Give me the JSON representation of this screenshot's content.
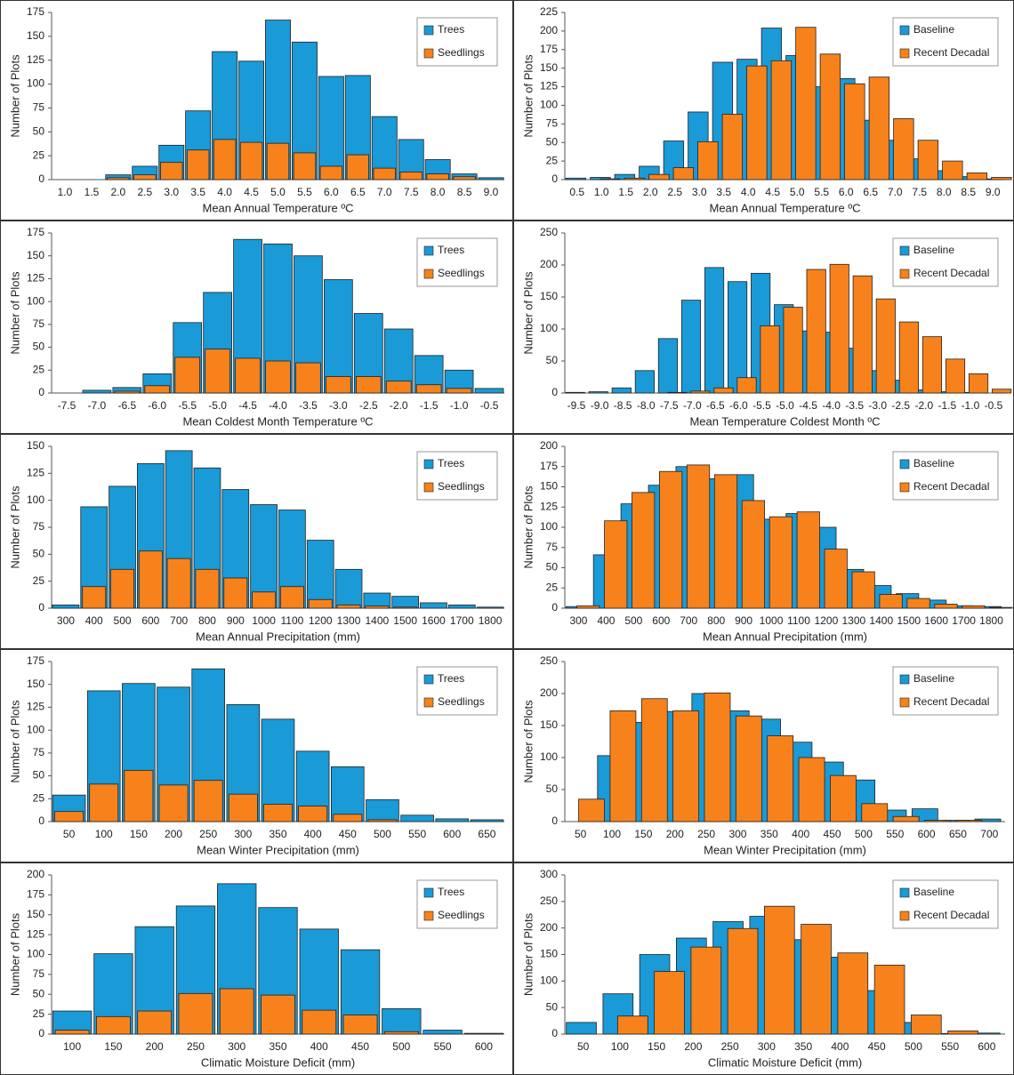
{
  "chart_data": [
    {
      "type": "bar",
      "x_label": "Mean Annual Temperature ºC",
      "y_label": "Number of Plots",
      "categories": [
        "1.0",
        "1.5",
        "2.0",
        "2.5",
        "3.0",
        "3.5",
        "4.0",
        "4.5",
        "5.0",
        "5.5",
        "6.0",
        "6.5",
        "7.0",
        "7.5",
        "8.0",
        "8.5",
        "9.0"
      ],
      "series": [
        {
          "name": "Trees",
          "color": "#1a9ad6",
          "values": [
            0,
            0,
            5,
            14,
            36,
            72,
            134,
            124,
            167,
            144,
            108,
            109,
            66,
            42,
            21,
            6,
            2
          ]
        },
        {
          "name": "Seedlings",
          "color": "#f7821b",
          "values": [
            0,
            0,
            2,
            5,
            18,
            31,
            42,
            39,
            38,
            28,
            14,
            26,
            12,
            8,
            6,
            3,
            0
          ]
        }
      ],
      "ylim": [
        0,
        175
      ],
      "yticks": [
        0,
        25,
        50,
        75,
        100,
        125,
        150,
        175
      ]
    },
    {
      "type": "bar",
      "x_label": "Mean Annual Temperature ºC",
      "y_label": "Number of Plots",
      "categories": [
        "0.5",
        "1.0",
        "1.5",
        "2.0",
        "2.5",
        "3.0",
        "3.5",
        "4.0",
        "4.5",
        "5.0",
        "5.5",
        "6.0",
        "6.5",
        "7.0",
        "7.5",
        "8.0",
        "8.5",
        "9.0"
      ],
      "series": [
        {
          "name": "Baseline",
          "color": "#1a9ad6",
          "values": [
            2,
            3,
            7,
            18,
            52,
            91,
            158,
            162,
            204,
            167,
            125,
            136,
            80,
            53,
            28,
            12,
            4,
            1
          ]
        },
        {
          "name": "Recent Decadal",
          "color": "#f7821b",
          "values": [
            0,
            1,
            2,
            7,
            16,
            51,
            88,
            153,
            160,
            205,
            169,
            129,
            138,
            82,
            53,
            25,
            9,
            3
          ]
        }
      ],
      "ylim": [
        0,
        225
      ],
      "yticks": [
        0,
        25,
        50,
        75,
        100,
        125,
        150,
        175,
        200,
        225
      ]
    },
    {
      "type": "bar",
      "x_label": "Mean Coldest Month Temperature ºC",
      "y_label": "Number of Plots",
      "categories": [
        "-7.5",
        "-7.0",
        "-6.5",
        "-6.0",
        "-5.5",
        "-5.0",
        "-4.5",
        "-4.0",
        "-3.5",
        "-3.0",
        "-2.5",
        "-2.0",
        "-1.5",
        "-1.0",
        "-0.5"
      ],
      "series": [
        {
          "name": "Trees",
          "color": "#1a9ad6",
          "values": [
            0,
            3,
            6,
            21,
            77,
            110,
            168,
            163,
            150,
            124,
            87,
            70,
            41,
            25,
            5
          ]
        },
        {
          "name": "Seedlings",
          "color": "#f7821b",
          "values": [
            0,
            0,
            2,
            8,
            39,
            48,
            38,
            35,
            33,
            18,
            18,
            13,
            9,
            5,
            0
          ]
        }
      ],
      "ylim": [
        0,
        175
      ],
      "yticks": [
        0,
        25,
        50,
        75,
        100,
        125,
        150,
        175
      ]
    },
    {
      "type": "bar",
      "x_label": "Mean Temperature Coldest Month ºC",
      "y_label": "Number of Plots",
      "categories": [
        "-9.5",
        "-9.0",
        "-8.5",
        "-8.0",
        "-7.5",
        "-7.0",
        "-6.5",
        "-6.0",
        "-5.5",
        "-5.0",
        "-4.5",
        "-4.0",
        "-3.5",
        "-3.0",
        "-2.5",
        "-2.0",
        "-1.5",
        "-1.0",
        "-0.5"
      ],
      "series": [
        {
          "name": "Baseline",
          "color": "#1a9ad6",
          "values": [
            1,
            2,
            8,
            35,
            85,
            145,
            196,
            174,
            187,
            138,
            97,
            95,
            70,
            35,
            20,
            5,
            2,
            1,
            0
          ]
        },
        {
          "name": "Recent Decadal",
          "color": "#f7821b",
          "values": [
            0,
            0,
            0,
            0,
            1,
            3,
            8,
            24,
            105,
            134,
            193,
            201,
            183,
            147,
            111,
            88,
            53,
            30,
            6
          ]
        }
      ],
      "ylim": [
        0,
        250
      ],
      "yticks": [
        0,
        50,
        100,
        150,
        200,
        250
      ]
    },
    {
      "type": "bar",
      "x_label": "Mean Annual Precipitation (mm)",
      "y_label": "Number of Plots",
      "categories": [
        "300",
        "400",
        "500",
        "600",
        "700",
        "800",
        "900",
        "1000",
        "1100",
        "1200",
        "1300",
        "1400",
        "1500",
        "1600",
        "1700",
        "1800"
      ],
      "series": [
        {
          "name": "Trees",
          "color": "#1a9ad6",
          "values": [
            3,
            94,
            113,
            134,
            146,
            130,
            110,
            96,
            91,
            63,
            36,
            14,
            11,
            5,
            3,
            1
          ]
        },
        {
          "name": "Seedlings",
          "color": "#f7821b",
          "values": [
            0,
            20,
            36,
            53,
            46,
            36,
            28,
            15,
            20,
            8,
            3,
            2,
            1,
            0,
            0,
            0
          ]
        }
      ],
      "ylim": [
        0,
        150
      ],
      "yticks": [
        0,
        25,
        50,
        75,
        100,
        125,
        150
      ]
    },
    {
      "type": "bar",
      "x_label": "Mean Annual Precipitation (mm)",
      "y_label": "Number of Plots",
      "categories": [
        "300",
        "400",
        "500",
        "600",
        "700",
        "800",
        "900",
        "1000",
        "1100",
        "1200",
        "1300",
        "1400",
        "1500",
        "1600",
        "1700",
        "1800"
      ],
      "series": [
        {
          "name": "Baseline",
          "color": "#1a9ad6",
          "values": [
            2,
            66,
            129,
            152,
            175,
            160,
            165,
            110,
            117,
            100,
            48,
            28,
            18,
            10,
            3,
            2
          ]
        },
        {
          "name": "Recent Decadal",
          "color": "#f7821b",
          "values": [
            3,
            108,
            143,
            169,
            177,
            165,
            133,
            113,
            119,
            73,
            45,
            17,
            12,
            5,
            3,
            1
          ]
        }
      ],
      "ylim": [
        0,
        200
      ],
      "yticks": [
        0,
        25,
        50,
        75,
        100,
        125,
        150,
        175,
        200
      ]
    },
    {
      "type": "bar",
      "x_label": "Mean Winter Precipitation (mm)",
      "y_label": "Number of Plots",
      "categories": [
        "50",
        "100",
        "150",
        "200",
        "250",
        "300",
        "350",
        "400",
        "450",
        "500",
        "550",
        "600",
        "650"
      ],
      "series": [
        {
          "name": "Trees",
          "color": "#1a9ad6",
          "values": [
            29,
            143,
            151,
            147,
            167,
            128,
            112,
            77,
            60,
            24,
            7,
            3,
            2
          ]
        },
        {
          "name": "Seedlings",
          "color": "#f7821b",
          "values": [
            11,
            41,
            56,
            40,
            45,
            30,
            19,
            17,
            8,
            2,
            0,
            0,
            0
          ]
        }
      ],
      "ylim": [
        0,
        175
      ],
      "yticks": [
        0,
        25,
        50,
        75,
        100,
        125,
        150,
        175
      ]
    },
    {
      "type": "bar",
      "x_label": "Mean Winter Precipitation (mm)",
      "y_label": "Number of Plots",
      "categories": [
        "50",
        "100",
        "150",
        "200",
        "250",
        "300",
        "350",
        "400",
        "450",
        "500",
        "550",
        "600",
        "650",
        "700"
      ],
      "series": [
        {
          "name": "Baseline",
          "color": "#1a9ad6",
          "values": [
            0,
            103,
            155,
            172,
            200,
            173,
            160,
            124,
            93,
            65,
            18,
            20,
            2,
            4
          ]
        },
        {
          "name": "Recent Decadal",
          "color": "#f7821b",
          "values": [
            35,
            173,
            192,
            173,
            201,
            165,
            134,
            100,
            72,
            28,
            8,
            2,
            2,
            0
          ]
        }
      ],
      "ylim": [
        0,
        250
      ],
      "yticks": [
        0,
        50,
        100,
        150,
        200,
        250
      ]
    },
    {
      "type": "bar",
      "x_label": "Climatic Moisture Deficit (mm)",
      "y_label": "Number of Plots",
      "categories": [
        "100",
        "150",
        "200",
        "250",
        "300",
        "350",
        "400",
        "450",
        "500",
        "550",
        "600"
      ],
      "series": [
        {
          "name": "Trees",
          "color": "#1a9ad6",
          "values": [
            29,
            101,
            135,
            161,
            189,
            159,
            132,
            106,
            32,
            5,
            1
          ]
        },
        {
          "name": "Seedlings",
          "color": "#f7821b",
          "values": [
            5,
            22,
            29,
            51,
            57,
            49,
            30,
            24,
            3,
            0,
            0
          ]
        }
      ],
      "ylim": [
        0,
        200
      ],
      "yticks": [
        0,
        25,
        50,
        75,
        100,
        125,
        150,
        175,
        200
      ]
    },
    {
      "type": "bar",
      "x_label": "Climatic Moisture Deficit (mm)",
      "y_label": "Number of Plots",
      "categories": [
        "50",
        "100",
        "150",
        "200",
        "250",
        "300",
        "350",
        "400",
        "450",
        "500",
        "550",
        "600"
      ],
      "series": [
        {
          "name": "Baseline",
          "color": "#1a9ad6",
          "values": [
            22,
            76,
            150,
            181,
            212,
            222,
            178,
            145,
            82,
            22,
            1,
            2
          ]
        },
        {
          "name": "Recent Decadal",
          "color": "#f7821b",
          "values": [
            0,
            34,
            118,
            164,
            199,
            241,
            207,
            153,
            130,
            36,
            6,
            0
          ]
        }
      ],
      "ylim": [
        0,
        300
      ],
      "yticks": [
        0,
        50,
        100,
        150,
        200,
        250,
        300
      ]
    }
  ]
}
